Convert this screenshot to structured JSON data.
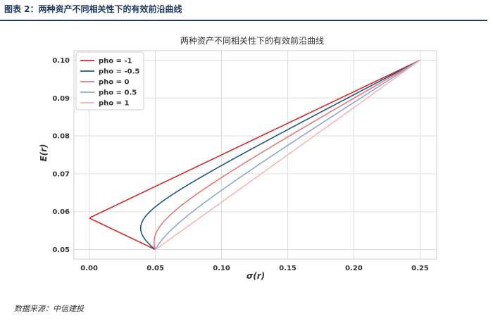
{
  "header": {
    "figure_title": "图表 2：两种资产不同相关性下的有效前沿曲线"
  },
  "footer": {
    "source": "数据来源：中信建投"
  },
  "chart_data": {
    "type": "line",
    "title": "两种资产不同相关性下的有效前沿曲线",
    "xlabel": "σ(r)",
    "ylabel": "E(r)",
    "xlim": [
      -0.0115,
      0.2625
    ],
    "ylim": [
      0.0475,
      0.1025
    ],
    "xticks": [
      "0.00",
      "0.05",
      "0.10",
      "0.15",
      "0.20",
      "0.25"
    ],
    "xtick_values": [
      0,
      0.05,
      0.1,
      0.15,
      0.2,
      0.25
    ],
    "yticks": [
      "0.05",
      "0.06",
      "0.07",
      "0.08",
      "0.09",
      "0.10"
    ],
    "ytick_values": [
      0.05,
      0.06,
      0.07,
      0.08,
      0.09,
      0.1
    ],
    "grid": true,
    "legend_position": "top-left",
    "asset_a": {
      "mean": 0.05,
      "sigma": 0.05
    },
    "asset_b": {
      "mean": 0.1,
      "sigma": 0.25
    },
    "series": [
      {
        "name": "pho = -1",
        "rho": -1,
        "color": "#d62728"
      },
      {
        "name": "pho = -0.5",
        "rho": -0.5,
        "color": "#1f5a7a"
      },
      {
        "name": "pho = 0",
        "rho": 0,
        "color": "#e8777b"
      },
      {
        "name": "pho = 0.5",
        "rho": 0.5,
        "color": "#8fa9c9"
      },
      {
        "name": "pho = 1",
        "rho": 1,
        "color": "#f4b6b6"
      }
    ]
  }
}
